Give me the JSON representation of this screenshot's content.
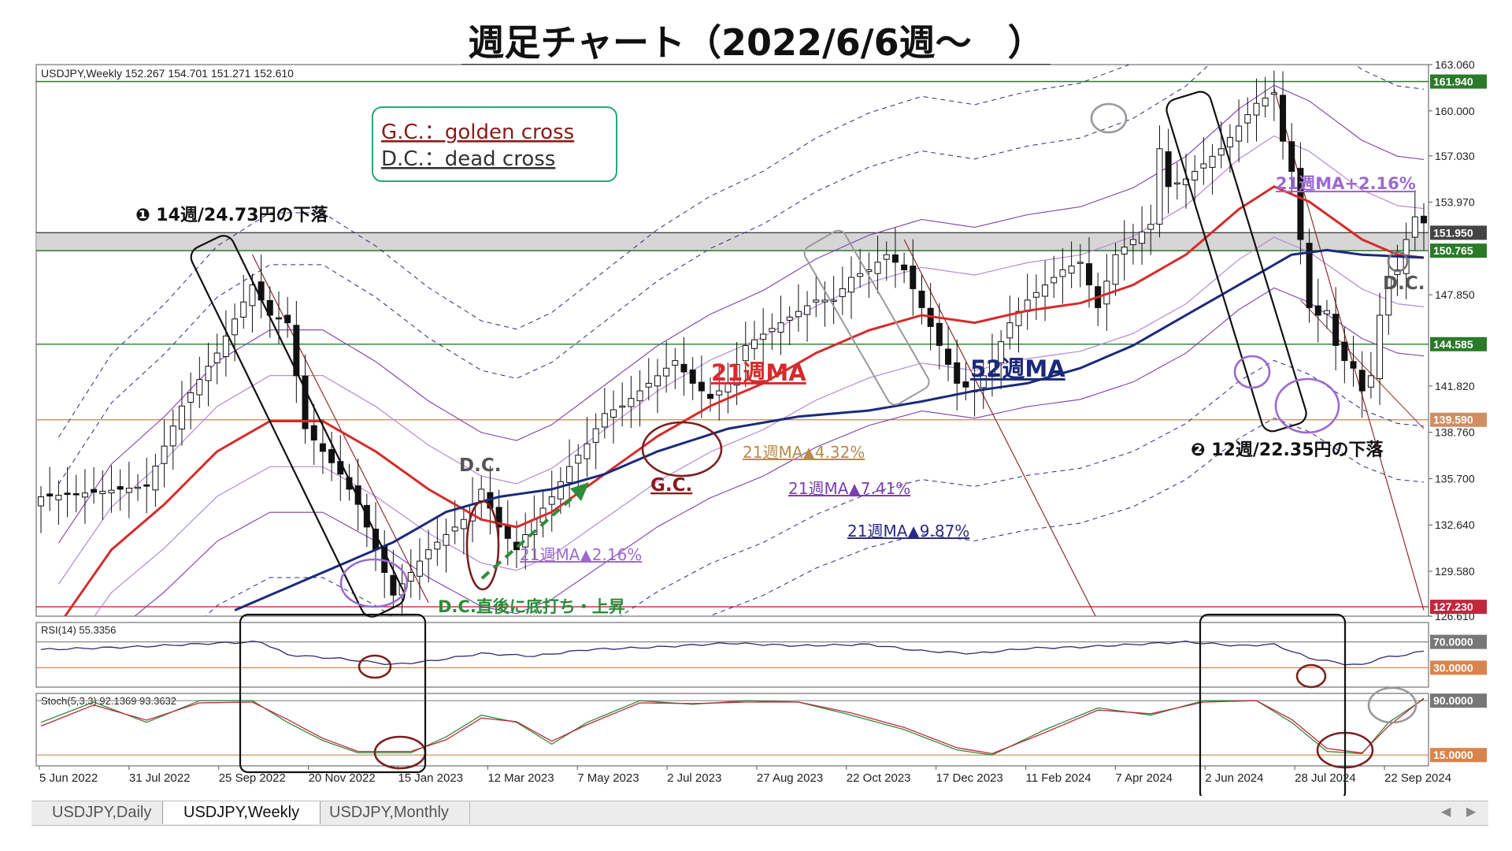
{
  "page": {
    "title": "週足チャート（2022/6/6週～　）"
  },
  "colors": {
    "ma21": "#d62b2b",
    "ma52": "#1b2a7a",
    "band1": "#b58ad6",
    "band2": "#7a3fb0",
    "band3": "#2b2b80",
    "trend": "#8b2e2e",
    "support": "#cf8f63",
    "green_level": "#2a7a2a",
    "red_level": "#c0283c",
    "arrow_green": "#2e8b3a",
    "legend_border": "#2aa57a"
  },
  "chart_data": [
    {
      "type": "candlestick",
      "symbol_info": "USDJPY,Weekly  152.267 154.701 151.271 152.610",
      "ylim": [
        126.61,
        163.06
      ],
      "y_ticks": [
        "163.060",
        "160.000",
        "157.030",
        "153.970",
        "147.850",
        "141.820",
        "138.760",
        "135.700",
        "132.640",
        "129.580",
        "126.610"
      ],
      "price_tags": [
        {
          "label": "161.940",
          "value": 161.94,
          "color": "#2a7a2a",
          "line": true
        },
        {
          "label": "151.950",
          "value": 151.95,
          "color": "#444444",
          "line": true
        },
        {
          "label": "150.765",
          "value": 150.765,
          "color": "#2a7a2a",
          "line": true
        },
        {
          "label": "144.585",
          "value": 144.585,
          "color": "#2a7a2a",
          "line": true
        },
        {
          "label": "139.590",
          "value": 139.59,
          "color": "#cf8f63",
          "line": true
        },
        {
          "label": "127.230",
          "value": 127.23,
          "color": "#c0283c",
          "line": true
        }
      ],
      "x_labels": [
        "5 Jun 2022",
        "31 Jul 2022",
        "25 Sep 2022",
        "20 Nov 2022",
        "15 Jan 2023",
        "12 Mar 2023",
        "7 May 2023",
        "2 Jul 2023",
        "27 Aug 2023",
        "22 Oct 2023",
        "17 Dec 2023",
        "11 Feb 2024",
        "7 Apr 2024",
        "2 Jun 2024",
        "28 Jul 2024",
        "22 Sep 2024"
      ],
      "close_anchors": [
        [
          0,
          134.5
        ],
        [
          6,
          134.8
        ],
        [
          12,
          135.2
        ],
        [
          16,
          140.5
        ],
        [
          20,
          144.0
        ],
        [
          24,
          148.5
        ],
        [
          26,
          146.5
        ],
        [
          28,
          146.0
        ],
        [
          30,
          139.0
        ],
        [
          34,
          136.0
        ],
        [
          36,
          134.0
        ],
        [
          38,
          131.0
        ],
        [
          40,
          128.0
        ],
        [
          42,
          129.5
        ],
        [
          44,
          131.0
        ],
        [
          48,
          133.0
        ],
        [
          50,
          135.0
        ],
        [
          52,
          132.5
        ],
        [
          54,
          131.0
        ],
        [
          56,
          133.0
        ],
        [
          58,
          134.5
        ],
        [
          60,
          136.5
        ],
        [
          62,
          138.0
        ],
        [
          64,
          140.0
        ],
        [
          66,
          140.5
        ],
        [
          68,
          141.5
        ],
        [
          70,
          142.5
        ],
        [
          72,
          143.5
        ],
        [
          74,
          142.0
        ],
        [
          76,
          141.0
        ],
        [
          78,
          142.0
        ],
        [
          80,
          144.5
        ],
        [
          84,
          146.0
        ],
        [
          88,
          147.5
        ],
        [
          90,
          147.5
        ],
        [
          92,
          149.0
        ],
        [
          94,
          149.5
        ],
        [
          96,
          150.5
        ],
        [
          98,
          149.5
        ],
        [
          100,
          147.0
        ],
        [
          102,
          144.5
        ],
        [
          104,
          142.0
        ],
        [
          106,
          141.5
        ],
        [
          108,
          143.5
        ],
        [
          110,
          146.0
        ],
        [
          112,
          147.5
        ],
        [
          114,
          148.5
        ],
        [
          116,
          149.5
        ],
        [
          118,
          150.0
        ],
        [
          120,
          147.0
        ],
        [
          122,
          150.5
        ],
        [
          124,
          151.5
        ],
        [
          126,
          152.5
        ],
        [
          127,
          157.5
        ],
        [
          128,
          155.0
        ],
        [
          130,
          155.5
        ],
        [
          132,
          156.5
        ],
        [
          134,
          157.5
        ],
        [
          136,
          159.0
        ],
        [
          138,
          160.5
        ],
        [
          140,
          161.2
        ],
        [
          141,
          158.0
        ],
        [
          142,
          156.0
        ],
        [
          143,
          151.5
        ],
        [
          144,
          147.0
        ],
        [
          145,
          146.5
        ],
        [
          146,
          146.8
        ],
        [
          147,
          144.5
        ],
        [
          148,
          143.5
        ],
        [
          149,
          143.0
        ],
        [
          150,
          141.5
        ],
        [
          151,
          142.5
        ],
        [
          152,
          146.5
        ],
        [
          153,
          149.0
        ],
        [
          154,
          149.5
        ],
        [
          155,
          151.5
        ],
        [
          156,
          153.0
        ],
        [
          157,
          152.6
        ]
      ],
      "indicator_lines": [
        {
          "name": "21週MA",
          "color": "#d62b2b",
          "points": [
            [
              2,
              126.0
            ],
            [
              8,
              131.0
            ],
            [
              14,
              134.0
            ],
            [
              20,
              137.5
            ],
            [
              26,
              139.5
            ],
            [
              32,
              139.5
            ],
            [
              38,
              137.5
            ],
            [
              44,
              135.0
            ],
            [
              50,
              133.0
            ],
            [
              54,
              132.5
            ],
            [
              58,
              133.5
            ],
            [
              64,
              136.0
            ],
            [
              70,
              138.5
            ],
            [
              76,
              140.5
            ],
            [
              82,
              142.0
            ],
            [
              88,
              144.0
            ],
            [
              94,
              145.5
            ],
            [
              100,
              146.5
            ],
            [
              106,
              146.0
            ],
            [
              112,
              146.8
            ],
            [
              118,
              147.3
            ],
            [
              124,
              148.5
            ],
            [
              130,
              150.5
            ],
            [
              136,
              153.5
            ],
            [
              140,
              155.0
            ],
            [
              144,
              154.0
            ],
            [
              150,
              151.5
            ],
            [
              154,
              150.5
            ],
            [
              157,
              150.3
            ]
          ]
        },
        {
          "name": "52週MA",
          "color": "#1b2a7a",
          "points": [
            [
              22,
              127.0
            ],
            [
              28,
              128.5
            ],
            [
              34,
              130.0
            ],
            [
              40,
              131.5
            ],
            [
              46,
              133.5
            ],
            [
              52,
              134.5
            ],
            [
              58,
              135.0
            ],
            [
              64,
              136.0
            ],
            [
              70,
              137.5
            ],
            [
              78,
              139.0
            ],
            [
              86,
              139.8
            ],
            [
              94,
              140.2
            ],
            [
              100,
              140.8
            ],
            [
              106,
              141.5
            ],
            [
              112,
              142.0
            ],
            [
              118,
              143.0
            ],
            [
              124,
              144.5
            ],
            [
              130,
              146.5
            ],
            [
              136,
              148.5
            ],
            [
              142,
              150.5
            ],
            [
              146,
              150.8
            ],
            [
              150,
              150.5
            ],
            [
              157,
              150.3
            ]
          ]
        }
      ],
      "bands": [
        {
          "name": "21週MA+2.16% / ▲2.16%",
          "pct": 2.16,
          "color": "#b58ad6"
        },
        {
          "name": "21週MA▲4.32%",
          "pct": 4.32,
          "color": "#7a3fb0"
        },
        {
          "name": "21週MA▲7.41%",
          "pct": 7.41,
          "color": "#2b2b80"
        },
        {
          "name": "21週MA▲9.87%",
          "pct": 9.87,
          "color": "#2b2b80"
        }
      ],
      "annotations": {
        "legend_gc": "G.C.：golden cross",
        "legend_dc": "D.C.：dead cross",
        "drop1": "❶ 14週/24.73円の下落",
        "drop2": "❷ 12週/22.35円の下落",
        "ma21_label": "21週MA",
        "ma52_label": "52週MA",
        "band_plus_label": "21週MA+2.16%",
        "band_m2_label": "21週MA▲2.16%",
        "band_m4_label": "21週MA▲4.32%",
        "band_m7_label": "21週MA▲7.41%",
        "band_m9_label": "21週MA▲9.87%",
        "dc1": "D.C.",
        "dc2": "D.C.",
        "gc1": "G.C.",
        "bottom_note": "D.C.直後に底打ち・上昇"
      }
    },
    {
      "type": "line",
      "name": "RSI(14) 55.3356",
      "ylim": [
        0,
        100
      ],
      "levels": [
        {
          "label": "70.0000",
          "value": 70
        },
        {
          "label": "30.0000",
          "value": 30
        }
      ],
      "values_anchor": [
        [
          0,
          58
        ],
        [
          10,
          62
        ],
        [
          20,
          68
        ],
        [
          25,
          70
        ],
        [
          28,
          50
        ],
        [
          34,
          44
        ],
        [
          40,
          35
        ],
        [
          44,
          40
        ],
        [
          50,
          52
        ],
        [
          56,
          48
        ],
        [
          62,
          58
        ],
        [
          70,
          62
        ],
        [
          78,
          68
        ],
        [
          86,
          64
        ],
        [
          94,
          66
        ],
        [
          100,
          56
        ],
        [
          106,
          52
        ],
        [
          112,
          60
        ],
        [
          118,
          62
        ],
        [
          124,
          66
        ],
        [
          130,
          70
        ],
        [
          136,
          64
        ],
        [
          140,
          66
        ],
        [
          144,
          45
        ],
        [
          148,
          36
        ],
        [
          150,
          34
        ],
        [
          152,
          45
        ],
        [
          154,
          48
        ],
        [
          157,
          55.34
        ]
      ]
    },
    {
      "type": "line",
      "name": "Stoch(5,3,3) 92.1369 93.3632",
      "ylim": [
        0,
        100
      ],
      "levels": [
        {
          "label": "90.0000",
          "value": 90
        },
        {
          "label": "15.0000",
          "value": 15
        }
      ],
      "k_anchor": [
        [
          0,
          60
        ],
        [
          6,
          88
        ],
        [
          12,
          60
        ],
        [
          18,
          90
        ],
        [
          24,
          90
        ],
        [
          28,
          60
        ],
        [
          32,
          35
        ],
        [
          36,
          18
        ],
        [
          42,
          18
        ],
        [
          46,
          40
        ],
        [
          50,
          70
        ],
        [
          54,
          60
        ],
        [
          58,
          30
        ],
        [
          62,
          60
        ],
        [
          68,
          90
        ],
        [
          74,
          85
        ],
        [
          80,
          90
        ],
        [
          86,
          88
        ],
        [
          92,
          70
        ],
        [
          98,
          50
        ],
        [
          104,
          22
        ],
        [
          108,
          15
        ],
        [
          114,
          50
        ],
        [
          120,
          80
        ],
        [
          126,
          70
        ],
        [
          132,
          90
        ],
        [
          138,
          90
        ],
        [
          142,
          60
        ],
        [
          146,
          20
        ],
        [
          150,
          17
        ],
        [
          153,
          60
        ],
        [
          157,
          92.14
        ]
      ],
      "d_anchor": [
        [
          0,
          55
        ],
        [
          6,
          84
        ],
        [
          12,
          63
        ],
        [
          18,
          87
        ],
        [
          24,
          88
        ],
        [
          28,
          64
        ],
        [
          32,
          38
        ],
        [
          36,
          20
        ],
        [
          42,
          20
        ],
        [
          46,
          36
        ],
        [
          50,
          66
        ],
        [
          54,
          61
        ],
        [
          58,
          34
        ],
        [
          62,
          57
        ],
        [
          68,
          87
        ],
        [
          74,
          86
        ],
        [
          80,
          88
        ],
        [
          86,
          88
        ],
        [
          92,
          73
        ],
        [
          98,
          53
        ],
        [
          104,
          25
        ],
        [
          108,
          17
        ],
        [
          114,
          46
        ],
        [
          120,
          77
        ],
        [
          126,
          72
        ],
        [
          132,
          88
        ],
        [
          138,
          90
        ],
        [
          142,
          64
        ],
        [
          146,
          24
        ],
        [
          150,
          18
        ],
        [
          153,
          55
        ],
        [
          157,
          93.36
        ]
      ]
    }
  ],
  "tabs": [
    {
      "label": "USDJPY,Daily"
    },
    {
      "label": "USDJPY,Weekly"
    },
    {
      "label": "USDJPY,Monthly"
    }
  ]
}
